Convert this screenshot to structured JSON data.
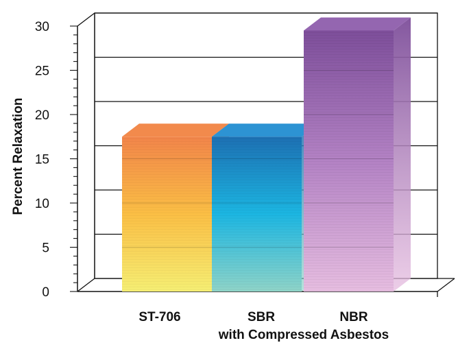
{
  "chart_data": {
    "type": "bar",
    "style": "3d",
    "categories": [
      "ST-706",
      "SBR",
      "NBR"
    ],
    "values": [
      17.5,
      17.5,
      29.5
    ],
    "ylabel": "Percent  Relaxation",
    "xlabel": "",
    "group_label": "with Compressed Asbestos",
    "group_categories": [
      "SBR",
      "NBR"
    ],
    "ylim": [
      0,
      30
    ],
    "yticks": [
      0,
      5,
      10,
      15,
      20,
      25,
      30
    ],
    "grid": true,
    "legend": "none",
    "series_colors": [
      {
        "top": "#f6ef74",
        "mid": "#fbbf45",
        "bottom_top": "#f2854a",
        "cap": "#f28a4c"
      },
      {
        "top": "#8fd4c8",
        "mid": "#1cb6e2",
        "bottom_top": "#1d70b3",
        "cap": "#2d93d3"
      },
      {
        "top": "#e6bde0",
        "mid": "#b382c4",
        "bottom_top": "#7d4e9a",
        "cap": "#9466b0"
      }
    ]
  }
}
